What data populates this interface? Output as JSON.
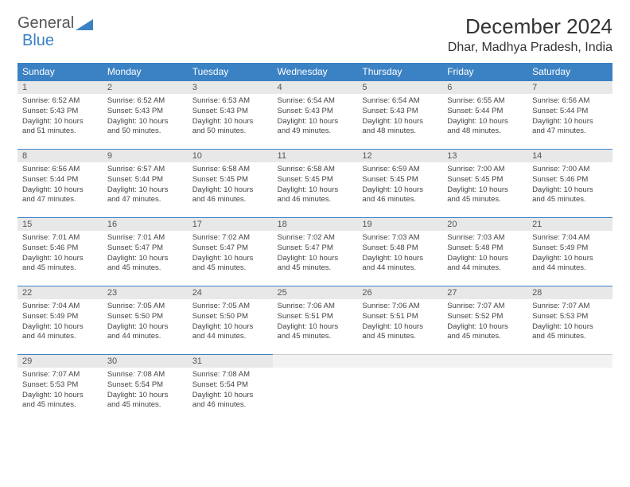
{
  "logo": {
    "text1": "General",
    "text2": "Blue"
  },
  "title": "December 2024",
  "location": "Dhar, Madhya Pradesh, India",
  "colors": {
    "header_bg": "#3b82c4",
    "header_text": "#ffffff",
    "daynum_bg": "#e8e8e8",
    "border": "#3b82c4",
    "body_text": "#444444"
  },
  "weekdays": [
    "Sunday",
    "Monday",
    "Tuesday",
    "Wednesday",
    "Thursday",
    "Friday",
    "Saturday"
  ],
  "weeks": [
    [
      {
        "n": "1",
        "sr": "Sunrise: 6:52 AM",
        "ss": "Sunset: 5:43 PM",
        "dl": "Daylight: 10 hours and 51 minutes."
      },
      {
        "n": "2",
        "sr": "Sunrise: 6:52 AM",
        "ss": "Sunset: 5:43 PM",
        "dl": "Daylight: 10 hours and 50 minutes."
      },
      {
        "n": "3",
        "sr": "Sunrise: 6:53 AM",
        "ss": "Sunset: 5:43 PM",
        "dl": "Daylight: 10 hours and 50 minutes."
      },
      {
        "n": "4",
        "sr": "Sunrise: 6:54 AM",
        "ss": "Sunset: 5:43 PM",
        "dl": "Daylight: 10 hours and 49 minutes."
      },
      {
        "n": "5",
        "sr": "Sunrise: 6:54 AM",
        "ss": "Sunset: 5:43 PM",
        "dl": "Daylight: 10 hours and 48 minutes."
      },
      {
        "n": "6",
        "sr": "Sunrise: 6:55 AM",
        "ss": "Sunset: 5:44 PM",
        "dl": "Daylight: 10 hours and 48 minutes."
      },
      {
        "n": "7",
        "sr": "Sunrise: 6:56 AM",
        "ss": "Sunset: 5:44 PM",
        "dl": "Daylight: 10 hours and 47 minutes."
      }
    ],
    [
      {
        "n": "8",
        "sr": "Sunrise: 6:56 AM",
        "ss": "Sunset: 5:44 PM",
        "dl": "Daylight: 10 hours and 47 minutes."
      },
      {
        "n": "9",
        "sr": "Sunrise: 6:57 AM",
        "ss": "Sunset: 5:44 PM",
        "dl": "Daylight: 10 hours and 47 minutes."
      },
      {
        "n": "10",
        "sr": "Sunrise: 6:58 AM",
        "ss": "Sunset: 5:45 PM",
        "dl": "Daylight: 10 hours and 46 minutes."
      },
      {
        "n": "11",
        "sr": "Sunrise: 6:58 AM",
        "ss": "Sunset: 5:45 PM",
        "dl": "Daylight: 10 hours and 46 minutes."
      },
      {
        "n": "12",
        "sr": "Sunrise: 6:59 AM",
        "ss": "Sunset: 5:45 PM",
        "dl": "Daylight: 10 hours and 46 minutes."
      },
      {
        "n": "13",
        "sr": "Sunrise: 7:00 AM",
        "ss": "Sunset: 5:45 PM",
        "dl": "Daylight: 10 hours and 45 minutes."
      },
      {
        "n": "14",
        "sr": "Sunrise: 7:00 AM",
        "ss": "Sunset: 5:46 PM",
        "dl": "Daylight: 10 hours and 45 minutes."
      }
    ],
    [
      {
        "n": "15",
        "sr": "Sunrise: 7:01 AM",
        "ss": "Sunset: 5:46 PM",
        "dl": "Daylight: 10 hours and 45 minutes."
      },
      {
        "n": "16",
        "sr": "Sunrise: 7:01 AM",
        "ss": "Sunset: 5:47 PM",
        "dl": "Daylight: 10 hours and 45 minutes."
      },
      {
        "n": "17",
        "sr": "Sunrise: 7:02 AM",
        "ss": "Sunset: 5:47 PM",
        "dl": "Daylight: 10 hours and 45 minutes."
      },
      {
        "n": "18",
        "sr": "Sunrise: 7:02 AM",
        "ss": "Sunset: 5:47 PM",
        "dl": "Daylight: 10 hours and 45 minutes."
      },
      {
        "n": "19",
        "sr": "Sunrise: 7:03 AM",
        "ss": "Sunset: 5:48 PM",
        "dl": "Daylight: 10 hours and 44 minutes."
      },
      {
        "n": "20",
        "sr": "Sunrise: 7:03 AM",
        "ss": "Sunset: 5:48 PM",
        "dl": "Daylight: 10 hours and 44 minutes."
      },
      {
        "n": "21",
        "sr": "Sunrise: 7:04 AM",
        "ss": "Sunset: 5:49 PM",
        "dl": "Daylight: 10 hours and 44 minutes."
      }
    ],
    [
      {
        "n": "22",
        "sr": "Sunrise: 7:04 AM",
        "ss": "Sunset: 5:49 PM",
        "dl": "Daylight: 10 hours and 44 minutes."
      },
      {
        "n": "23",
        "sr": "Sunrise: 7:05 AM",
        "ss": "Sunset: 5:50 PM",
        "dl": "Daylight: 10 hours and 44 minutes."
      },
      {
        "n": "24",
        "sr": "Sunrise: 7:05 AM",
        "ss": "Sunset: 5:50 PM",
        "dl": "Daylight: 10 hours and 44 minutes."
      },
      {
        "n": "25",
        "sr": "Sunrise: 7:06 AM",
        "ss": "Sunset: 5:51 PM",
        "dl": "Daylight: 10 hours and 45 minutes."
      },
      {
        "n": "26",
        "sr": "Sunrise: 7:06 AM",
        "ss": "Sunset: 5:51 PM",
        "dl": "Daylight: 10 hours and 45 minutes."
      },
      {
        "n": "27",
        "sr": "Sunrise: 7:07 AM",
        "ss": "Sunset: 5:52 PM",
        "dl": "Daylight: 10 hours and 45 minutes."
      },
      {
        "n": "28",
        "sr": "Sunrise: 7:07 AM",
        "ss": "Sunset: 5:53 PM",
        "dl": "Daylight: 10 hours and 45 minutes."
      }
    ],
    [
      {
        "n": "29",
        "sr": "Sunrise: 7:07 AM",
        "ss": "Sunset: 5:53 PM",
        "dl": "Daylight: 10 hours and 45 minutes."
      },
      {
        "n": "30",
        "sr": "Sunrise: 7:08 AM",
        "ss": "Sunset: 5:54 PM",
        "dl": "Daylight: 10 hours and 45 minutes."
      },
      {
        "n": "31",
        "sr": "Sunrise: 7:08 AM",
        "ss": "Sunset: 5:54 PM",
        "dl": "Daylight: 10 hours and 46 minutes."
      },
      null,
      null,
      null,
      null
    ]
  ]
}
